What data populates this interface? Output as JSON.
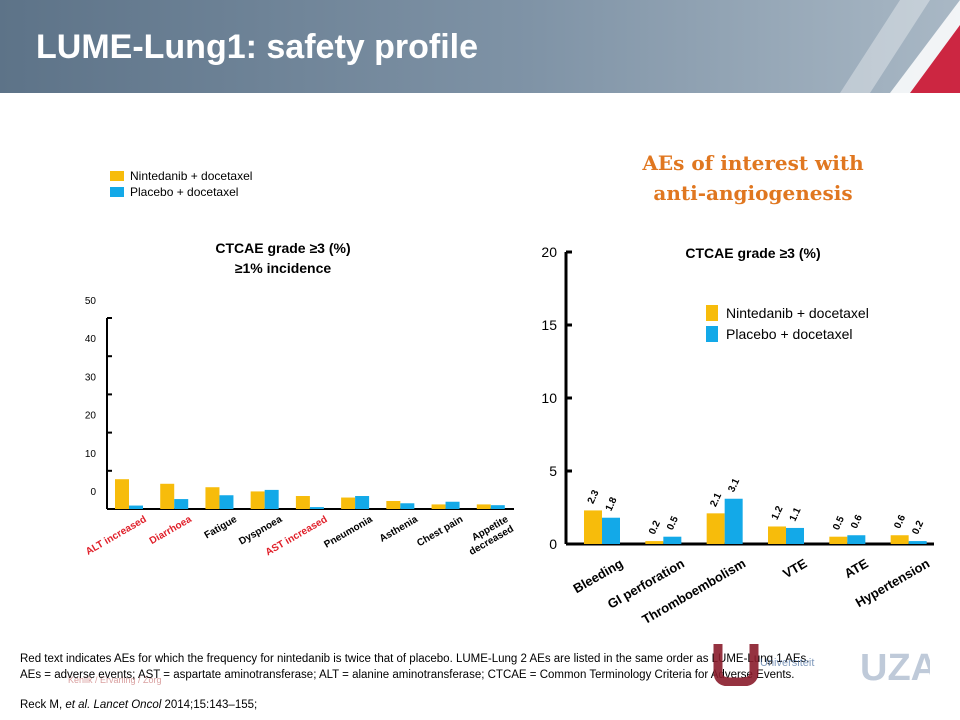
{
  "header": {
    "title": "LUME-Lung1: safety profile"
  },
  "colors": {
    "nintedanib": "#f7bc0b",
    "placebo": "#13a9e8",
    "highlight_red": "#e0202a",
    "accent_orange": "#e07720"
  },
  "legend": {
    "nintedanib": "Nintedanib + docetaxel",
    "placebo": "Placebo + docetaxel"
  },
  "aes_title": {
    "line1": "AEs of interest with",
    "line2": "anti-angiogenesis"
  },
  "chart_data": [
    {
      "type": "bar",
      "title": "CTCAE grade ≥3 (%)",
      "subtitle": "≥1% incidence",
      "categories": [
        "ALT increased",
        "Diarrhoea",
        "Fatigue",
        "Dyspnoea",
        "AST increased",
        "Pneumonia",
        "Asthenia",
        "Chest pain",
        "Appetite decreased"
      ],
      "category_lines": [
        [
          "ALT increased"
        ],
        [
          "Diarrhoea"
        ],
        [
          "Fatigue"
        ],
        [
          "Dyspnoea"
        ],
        [
          "AST increased"
        ],
        [
          "Pneumonia"
        ],
        [
          "Asthenia"
        ],
        [
          "Chest pain"
        ],
        [
          "Appetite",
          "decreased"
        ]
      ],
      "highlighted": [
        true,
        true,
        false,
        false,
        true,
        false,
        false,
        false,
        false
      ],
      "series": [
        {
          "name": "Nintedanib + docetaxel",
          "values": [
            7.8,
            6.6,
            5.7,
            4.6,
            3.4,
            3.0,
            2.1,
            1.2,
            1.2
          ]
        },
        {
          "name": "Placebo + docetaxel",
          "values": [
            0.9,
            2.6,
            3.6,
            5.0,
            0.5,
            3.4,
            1.5,
            1.9,
            1.0
          ]
        }
      ],
      "yticks": [
        "0",
        "10",
        "20",
        "30",
        "40",
        "50"
      ],
      "ylim": [
        0,
        50
      ],
      "grid": false
    },
    {
      "type": "bar",
      "title": "CTCAE grade ≥3 (%)",
      "categories": [
        "Bleeding",
        "GI perforation",
        "Thromboembolism",
        "VTE",
        "ATE",
        "Hypertension"
      ],
      "series": [
        {
          "name": "Nintedanib + docetaxel",
          "values": [
            2.3,
            0.2,
            2.1,
            1.2,
            0.5,
            0.6
          ],
          "labels": [
            "2.3",
            "0.2",
            "2.1",
            "1.2",
            "0.5",
            "0.6"
          ]
        },
        {
          "name": "Placebo + docetaxel",
          "values": [
            1.8,
            0.5,
            3.1,
            1.1,
            0.6,
            0.2
          ],
          "labels": [
            "1.8",
            "0.5",
            "3.1",
            "1.1",
            "0.6",
            "0.2"
          ]
        }
      ],
      "yticks": [
        "0",
        "5",
        "10",
        "15",
        "20"
      ],
      "ylim": [
        0,
        20
      ],
      "grid": false
    }
  ],
  "footnote": {
    "line1": "Red text indicates AEs for which the frequency for nintedanib is twice that of placebo. LUME-Lung 2 AEs are listed in the same order as LUME-Lung 1 AEs.",
    "line2": "AEs = adverse events; AST = aspartate aminotransferase; ALT = alanine aminotransferase; CTCAE = Common Terminology Criteria for Adverse Events."
  },
  "reference": {
    "author": "Reck M, ",
    "etal": "et al. Lancet Oncol",
    "rest": " 2014;15:143–155;"
  }
}
